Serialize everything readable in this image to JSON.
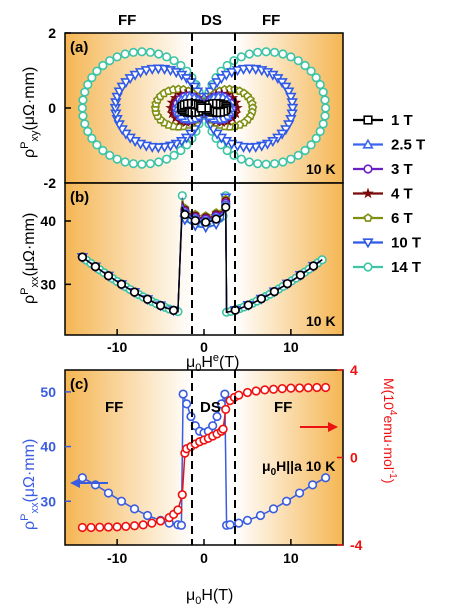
{
  "colors": {
    "s1T": "#000000",
    "s25T": "#3a66f0",
    "s3T": "#6a1fc4",
    "s4T": "#7a0a0a",
    "s6T": "#7f8f12",
    "s10T": "#2f59e6",
    "s14T": "#3dc4a6",
    "rhoxx_c": "#3a5ce0",
    "M": "#ee1111",
    "ff_band": "#f4b24a"
  },
  "chart_data": [
    {
      "type": "scatter",
      "panel": "(a)",
      "ylabel": "ρPxy(μΩ·mm)",
      "regions": [
        "FF",
        "DS",
        "FF"
      ],
      "annotation": "10 K",
      "xlim": [
        -16,
        16
      ],
      "ylim": [
        -2,
        2
      ],
      "yticks": [
        "2",
        "0",
        "-2"
      ],
      "ds_boundaries": [
        -2.5,
        2.5
      ],
      "grid": false,
      "legend_position": "right",
      "series": [
        {
          "name": "1 T",
          "color_key": "s1T",
          "marker": "square",
          "amp": 0.12,
          "xmax": 2.6
        },
        {
          "name": "2.5 T",
          "color_key": "s25T",
          "marker": "triangle-up",
          "amp": 0.3,
          "xmax": 3.0
        },
        {
          "name": "3 T",
          "color_key": "s3T",
          "marker": "circle",
          "amp": 0.32,
          "xmax": 3.2
        },
        {
          "name": "4 T",
          "color_key": "s4T",
          "marker": "star",
          "amp": 0.38,
          "xmax": 3.8
        },
        {
          "name": "6 T",
          "color_key": "s6T",
          "marker": "pentagon",
          "amp": 0.5,
          "xmax": 5.6
        },
        {
          "name": "10 T",
          "color_key": "s10T",
          "marker": "triangle-down",
          "amp": 1.05,
          "xmax": 10.2
        },
        {
          "name": "14 T",
          "color_key": "s14T",
          "marker": "circle",
          "amp": 1.5,
          "xmax": 14.0
        }
      ]
    },
    {
      "type": "scatter",
      "panel": "(b)",
      "ylabel": "ρPxx(μΩ·mm)",
      "xlabel": "μ0He(T)",
      "annotation": "10 K",
      "xlim": [
        -16,
        16
      ],
      "ylim": [
        22,
        46
      ],
      "xticks": [
        -10,
        0,
        10
      ],
      "yticks": [
        30,
        40
      ],
      "points": {
        "x": [
          -14,
          -12,
          -10,
          -8,
          -6,
          -4,
          -3,
          -2.5,
          -2.5,
          -2,
          -1,
          0,
          1,
          2,
          2.5,
          2.5,
          3,
          4,
          6,
          8,
          10,
          12,
          14
        ],
        "y": [
          34.3,
          32.2,
          30.3,
          28.7,
          27.3,
          26.2,
          25.8,
          25.6,
          44,
          41,
          39.8,
          39.6,
          39.8,
          41,
          44,
          25.6,
          25.8,
          26.2,
          27.3,
          28.7,
          30.3,
          32.2,
          34.3
        ]
      }
    },
    {
      "type": "scatter",
      "panel": "(c)",
      "regions": [
        "FF",
        "DS",
        "FF"
      ],
      "xlabel": "μ0H(T)",
      "ylabel_left": "ρPxx(μΩ·mm)",
      "ylabel_right": "M(104emu·mol-1)",
      "annotation": "μ0H||a  10 K",
      "xlim": [
        -16,
        16
      ],
      "ylim_left": [
        22,
        54
      ],
      "ylim_right": [
        -4,
        4
      ],
      "xticks": [
        -10,
        0,
        10
      ],
      "yticks_left": [
        30,
        40,
        50
      ],
      "yticks_right": [
        -4,
        0,
        4
      ],
      "series": [
        {
          "name": "ρPxx",
          "color_key": "rhoxx_c",
          "axis": "left",
          "x": [
            -14,
            -12.5,
            -11,
            -9.5,
            -8,
            -6.5,
            -5,
            -4,
            -3,
            -2.6,
            -2.4,
            -2,
            -1.5,
            -1,
            -0.5,
            0,
            0.5,
            1,
            1.5,
            2,
            2.4,
            2.6,
            3,
            4,
            5,
            6.5,
            8,
            9.5,
            11,
            12.5,
            14
          ],
          "y": [
            34.3,
            33.0,
            31.5,
            30.0,
            28.6,
            27.4,
            26.5,
            26.0,
            25.7,
            25.6,
            49.6,
            47.8,
            45.5,
            43.8,
            42.8,
            42.5,
            42.8,
            43.8,
            45.5,
            47.8,
            49.6,
            25.6,
            25.7,
            26.0,
            26.5,
            27.4,
            28.6,
            30.0,
            31.5,
            33.0,
            34.3
          ]
        },
        {
          "name": "M",
          "color_key": "M",
          "axis": "right",
          "x": [
            -14,
            -13,
            -12,
            -11,
            -10,
            -9,
            -8,
            -7,
            -6,
            -5,
            -4,
            -3.5,
            -3,
            -2.5,
            -2.2,
            -2,
            -1.5,
            -1,
            -0.5,
            0,
            0.5,
            1,
            1.5,
            2,
            2.2,
            2.5,
            3,
            3.5,
            4,
            5,
            6,
            7,
            8,
            9,
            10,
            11,
            12,
            13,
            14
          ],
          "y": [
            -3.2,
            -3.2,
            -3.19,
            -3.18,
            -3.17,
            -3.15,
            -3.12,
            -3.08,
            -3.0,
            -2.9,
            -2.75,
            -2.6,
            -2.4,
            -1.7,
            0.2,
            0.4,
            0.5,
            0.62,
            0.72,
            0.8,
            0.88,
            0.98,
            1.08,
            1.2,
            1.3,
            2.2,
            2.6,
            2.75,
            2.85,
            2.97,
            3.04,
            3.09,
            3.12,
            3.15,
            3.17,
            3.18,
            3.19,
            3.2,
            3.2
          ]
        }
      ]
    }
  ]
}
